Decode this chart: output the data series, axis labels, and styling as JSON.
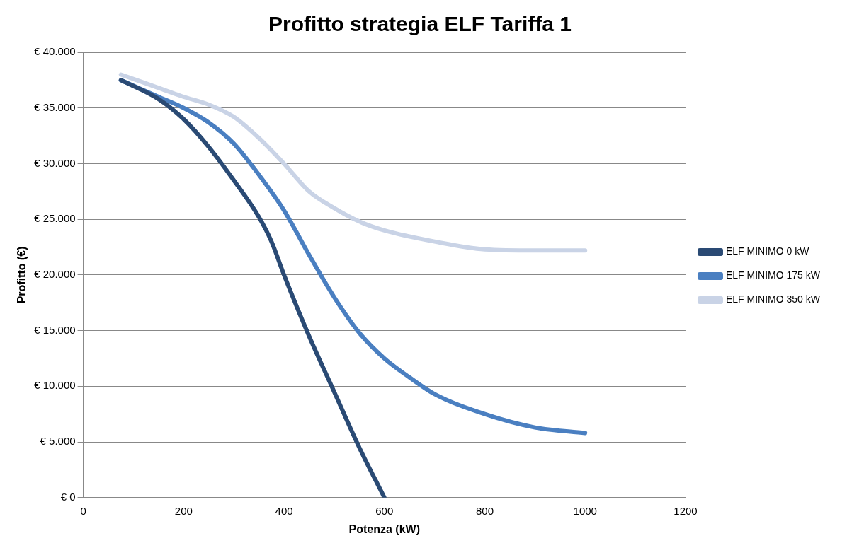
{
  "chart_data": {
    "type": "line",
    "title": "Profitto strategia ELF Tariffa 1",
    "xlabel": "Potenza (kW)",
    "ylabel": "Profitto (€)",
    "xlim": [
      0,
      1200
    ],
    "xticks": [
      0,
      200,
      400,
      600,
      800,
      1000,
      1200
    ],
    "ylim": [
      0,
      40000
    ],
    "yticks": [
      {
        "value": 0,
        "label": "€ 0"
      },
      {
        "value": 5000,
        "label": "€ 5.000"
      },
      {
        "value": 10000,
        "label": "€ 10.000"
      },
      {
        "value": 15000,
        "label": "€ 15.000"
      },
      {
        "value": 20000,
        "label": "€ 20.000"
      },
      {
        "value": 25000,
        "label": "€ 25.000"
      },
      {
        "value": 30000,
        "label": "€ 30.000"
      },
      {
        "value": 35000,
        "label": "€ 35.000"
      },
      {
        "value": 40000,
        "label": "€ 40.000"
      }
    ],
    "grid": "y",
    "legend": "right",
    "marker": "none",
    "line_style": "solid",
    "series": [
      {
        "name": "ELF MINIMO 0 kW",
        "color": "#2a4a74",
        "x": [
          75,
          150,
          200,
          250,
          300,
          350,
          375,
          400,
          450,
          500,
          550,
          600
        ],
        "values": [
          37500,
          35800,
          34000,
          31500,
          28500,
          25200,
          23000,
          20000,
          14500,
          9500,
          4500,
          0
        ]
      },
      {
        "name": "ELF MINIMO 175 kW",
        "color": "#4a7fc1",
        "x": [
          75,
          150,
          200,
          250,
          300,
          350,
          400,
          450,
          500,
          550,
          600,
          650,
          700,
          800,
          900,
          1000
        ],
        "values": [
          37500,
          36000,
          35000,
          33700,
          31800,
          29000,
          25800,
          21800,
          18000,
          14800,
          12500,
          10800,
          9300,
          7500,
          6300,
          5800
        ]
      },
      {
        "name": "ELF MINIMO 350 kW",
        "color": "#c9d3e6",
        "x": [
          75,
          150,
          200,
          250,
          300,
          350,
          400,
          450,
          500,
          550,
          600,
          700,
          800,
          900,
          1000
        ],
        "values": [
          38000,
          36800,
          36000,
          35300,
          34200,
          32300,
          30000,
          27500,
          26000,
          24800,
          24000,
          23000,
          22300,
          22200,
          22200
        ]
      }
    ]
  }
}
